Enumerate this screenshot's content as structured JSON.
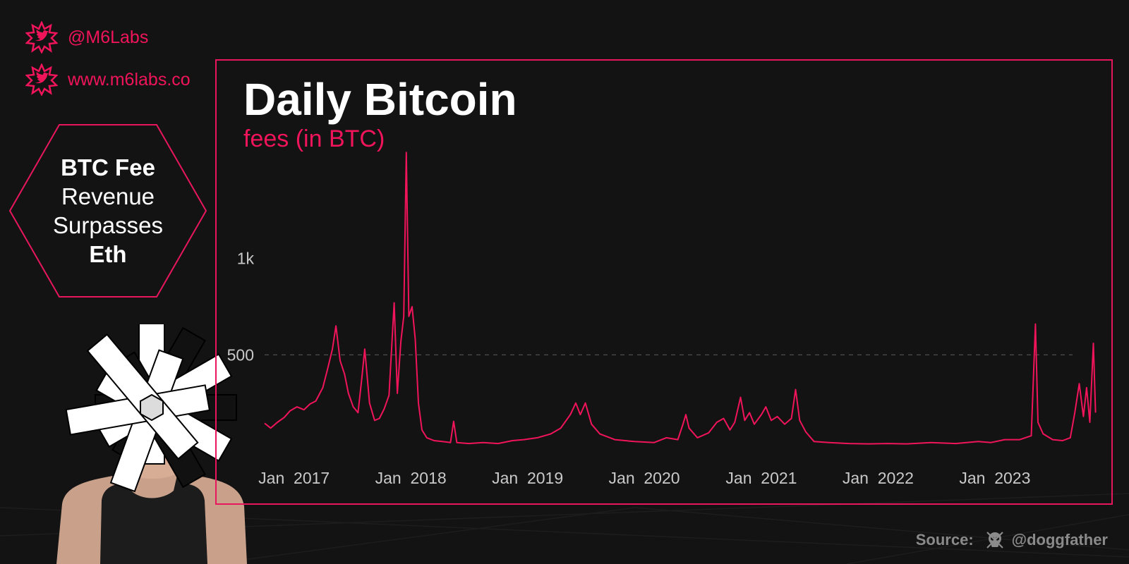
{
  "social": {
    "handle": "@M6Labs",
    "website": "www.m6labs.co",
    "icon": "bird-icon"
  },
  "badge": {
    "line1": "BTC Fee",
    "line2": "Revenue",
    "line3": "Surpasses",
    "line4": "Eth"
  },
  "source": {
    "label": "Source:",
    "author": "@doggfather",
    "icon": "skull-icon"
  },
  "colors": {
    "accent": "#e8175d",
    "background": "#131313",
    "text": "#ffffff"
  },
  "chart_data": {
    "type": "line",
    "title": "Daily Bitcoin",
    "subtitle": "fees (in BTC)",
    "xlabel": "",
    "ylabel": "",
    "x_ticks": [
      "Jan  2017",
      "Jan  2018",
      "Jan  2019",
      "Jan  2020",
      "Jan  2021",
      "Jan  2022",
      "Jan  2023"
    ],
    "y_ticks": [
      500,
      1000
    ],
    "y_tick_labels": [
      "500",
      "1k"
    ],
    "ylim": [
      0,
      1500
    ],
    "xlim": [
      "2016-10-01",
      "2023-09-01"
    ],
    "grid": "dashed line at 500",
    "legend": "none",
    "series": [
      {
        "name": "",
        "color": "#f0145a",
        "points": [
          [
            "2016-10-01",
            145
          ],
          [
            "2016-10-20",
            120
          ],
          [
            "2016-11-10",
            150
          ],
          [
            "2016-12-01",
            175
          ],
          [
            "2016-12-20",
            210
          ],
          [
            "2017-01-10",
            230
          ],
          [
            "2017-02-01",
            215
          ],
          [
            "2017-02-20",
            245
          ],
          [
            "2017-03-10",
            260
          ],
          [
            "2017-04-01",
            330
          ],
          [
            "2017-04-15",
            420
          ],
          [
            "2017-05-01",
            530
          ],
          [
            "2017-05-12",
            650
          ],
          [
            "2017-05-25",
            470
          ],
          [
            "2017-06-08",
            400
          ],
          [
            "2017-06-20",
            300
          ],
          [
            "2017-07-05",
            230
          ],
          [
            "2017-07-20",
            200
          ],
          [
            "2017-08-01",
            380
          ],
          [
            "2017-08-10",
            530
          ],
          [
            "2017-08-25",
            250
          ],
          [
            "2017-09-10",
            160
          ],
          [
            "2017-09-25",
            170
          ],
          [
            "2017-10-10",
            220
          ],
          [
            "2017-10-25",
            290
          ],
          [
            "2017-11-10",
            770
          ],
          [
            "2017-11-20",
            300
          ],
          [
            "2017-12-01",
            570
          ],
          [
            "2017-12-10",
            700
          ],
          [
            "2017-12-18",
            1550
          ],
          [
            "2017-12-26",
            700
          ],
          [
            "2018-01-05",
            750
          ],
          [
            "2018-01-15",
            580
          ],
          [
            "2018-01-25",
            250
          ],
          [
            "2018-02-05",
            110
          ],
          [
            "2018-02-20",
            70
          ],
          [
            "2018-03-15",
            55
          ],
          [
            "2018-04-10",
            50
          ],
          [
            "2018-05-05",
            45
          ],
          [
            "2018-05-15",
            155
          ],
          [
            "2018-05-25",
            45
          ],
          [
            "2018-07-01",
            40
          ],
          [
            "2018-08-15",
            45
          ],
          [
            "2018-10-01",
            40
          ],
          [
            "2018-11-15",
            55
          ],
          [
            "2018-12-20",
            60
          ],
          [
            "2019-02-01",
            70
          ],
          [
            "2019-03-15",
            90
          ],
          [
            "2019-04-15",
            120
          ],
          [
            "2019-05-15",
            190
          ],
          [
            "2019-06-01",
            250
          ],
          [
            "2019-06-15",
            190
          ],
          [
            "2019-07-01",
            250
          ],
          [
            "2019-07-20",
            140
          ],
          [
            "2019-08-15",
            90
          ],
          [
            "2019-10-01",
            60
          ],
          [
            "2019-12-01",
            50
          ],
          [
            "2020-02-01",
            45
          ],
          [
            "2020-03-10",
            70
          ],
          [
            "2020-04-15",
            60
          ],
          [
            "2020-05-01",
            140
          ],
          [
            "2020-05-10",
            190
          ],
          [
            "2020-05-20",
            120
          ],
          [
            "2020-06-15",
            70
          ],
          [
            "2020-07-20",
            95
          ],
          [
            "2020-08-15",
            150
          ],
          [
            "2020-09-05",
            170
          ],
          [
            "2020-09-25",
            110
          ],
          [
            "2020-10-10",
            150
          ],
          [
            "2020-10-28",
            280
          ],
          [
            "2020-11-10",
            160
          ],
          [
            "2020-11-25",
            200
          ],
          [
            "2020-12-10",
            140
          ],
          [
            "2021-01-01",
            190
          ],
          [
            "2021-01-15",
            230
          ],
          [
            "2021-02-01",
            160
          ],
          [
            "2021-02-20",
            180
          ],
          [
            "2021-03-15",
            140
          ],
          [
            "2021-04-05",
            170
          ],
          [
            "2021-04-18",
            320
          ],
          [
            "2021-05-01",
            160
          ],
          [
            "2021-05-20",
            100
          ],
          [
            "2021-06-15",
            50
          ],
          [
            "2021-08-01",
            45
          ],
          [
            "2021-10-01",
            40
          ],
          [
            "2021-12-01",
            38
          ],
          [
            "2022-02-01",
            40
          ],
          [
            "2022-04-01",
            38
          ],
          [
            "2022-06-15",
            45
          ],
          [
            "2022-09-01",
            40
          ],
          [
            "2022-11-10",
            50
          ],
          [
            "2022-12-20",
            45
          ],
          [
            "2023-02-01",
            60
          ],
          [
            "2023-03-20",
            60
          ],
          [
            "2023-04-25",
            80
          ],
          [
            "2023-05-08",
            660
          ],
          [
            "2023-05-16",
            150
          ],
          [
            "2023-06-01",
            90
          ],
          [
            "2023-07-01",
            60
          ],
          [
            "2023-08-01",
            55
          ],
          [
            "2023-08-25",
            70
          ],
          [
            "2023-09-08",
            200
          ],
          [
            "2023-09-22",
            350
          ],
          [
            "2023-10-05",
            180
          ],
          [
            "2023-10-15",
            330
          ],
          [
            "2023-10-25",
            150
          ],
          [
            "2023-11-05",
            560
          ],
          [
            "2023-11-12",
            200
          ]
        ]
      }
    ]
  }
}
